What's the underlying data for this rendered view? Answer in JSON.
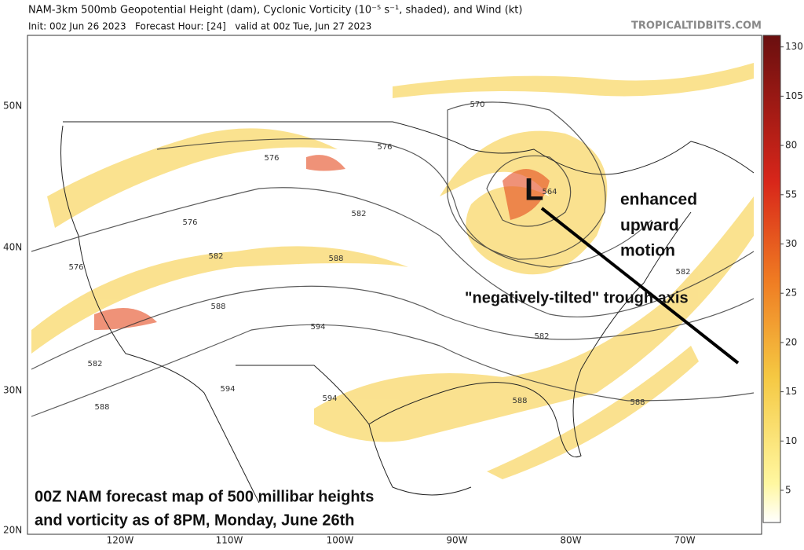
{
  "header": {
    "title": "NAM-3km 500mb Geopotential Height (dam), Cyclonic Vorticity (10⁻⁵ s⁻¹, shaded), and Wind (kt)",
    "subtitle": "Init: 00z Jun 26 2023   Forecast Hour: [24]   valid at 00z Tue, Jun 27 2023",
    "source": "TROPICALTIDBITS.COM"
  },
  "map": {
    "latitude_labels": [
      "50N",
      "40N",
      "30N",
      "20N"
    ],
    "longitude_labels": [
      "120W",
      "110W",
      "100W",
      "90W",
      "80W",
      "70W"
    ],
    "contour_labels": [
      "576",
      "576",
      "582",
      "576",
      "582",
      "576",
      "588",
      "588",
      "594",
      "582",
      "594",
      "594",
      "588",
      "588",
      "588",
      "582",
      "582",
      "570",
      "564"
    ]
  },
  "colorbar": {
    "ticks": [
      5,
      10,
      15,
      20,
      25,
      30,
      55,
      80,
      105,
      130
    ]
  },
  "annotations": {
    "low_symbol": "L",
    "motion": [
      "enhanced",
      "upward",
      "motion"
    ],
    "trough": "\"negatively-tilted\" trough axis",
    "caption": [
      "00Z NAM forecast map of 500 millibar heights",
      "and vorticity as of 8PM, Monday, June 26th"
    ]
  }
}
